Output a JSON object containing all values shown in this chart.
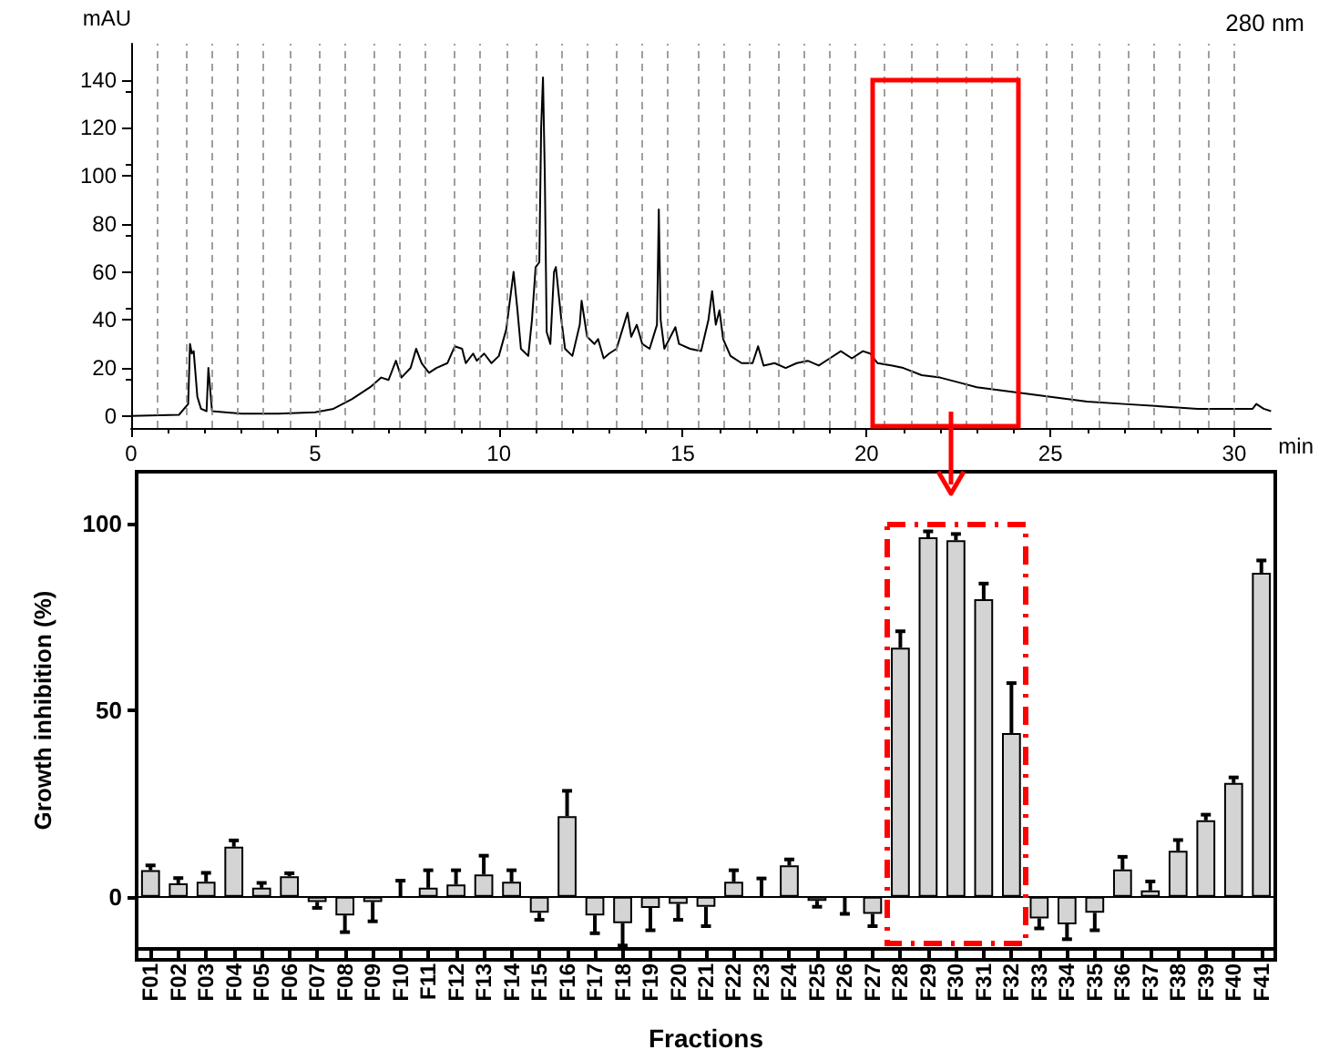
{
  "chart_data": [
    {
      "type": "line",
      "xlabel": "min",
      "ylabel": "mAU",
      "annotations": [
        "280 nm"
      ],
      "color": "#000000",
      "x": [
        0,
        1.3,
        1.55,
        1.6,
        1.65,
        1.7,
        1.8,
        1.9,
        2.05,
        2.1,
        2.2,
        3,
        4,
        5,
        5.5,
        6,
        6.5,
        6.8,
        7.0,
        7.2,
        7.35,
        7.6,
        7.75,
        7.9,
        8.1,
        8.3,
        8.6,
        8.8,
        9.0,
        9.1,
        9.3,
        9.4,
        9.6,
        9.8,
        10.0,
        10.2,
        10.4,
        10.5,
        10.6,
        10.8,
        10.9,
        11.0,
        11.1,
        11.15,
        11.2,
        11.25,
        11.3,
        11.4,
        11.5,
        11.55,
        11.7,
        11.8,
        12.0,
        12.2,
        12.25,
        12.4,
        12.6,
        12.7,
        12.85,
        13.0,
        13.2,
        13.4,
        13.5,
        13.6,
        13.75,
        13.9,
        14.1,
        14.3,
        14.35,
        14.4,
        14.5,
        14.8,
        14.9,
        15.2,
        15.5,
        15.7,
        15.8,
        15.9,
        16.0,
        16.1,
        16.3,
        16.6,
        16.9,
        17.05,
        17.2,
        17.5,
        17.8,
        18.1,
        18.4,
        18.7,
        19.0,
        19.3,
        19.6,
        19.9,
        20.1,
        20.3,
        20.7,
        21.0,
        21.5,
        22.0,
        22.5,
        23,
        24,
        25,
        26,
        27,
        28,
        29,
        30,
        30.5,
        30.6,
        30.8,
        31
      ],
      "values": [
        0,
        0.5,
        5,
        30,
        26,
        27,
        8,
        3,
        2,
        20,
        2,
        1,
        1,
        1.5,
        3,
        7,
        12,
        16,
        15,
        23,
        16,
        20,
        28,
        22,
        18,
        20,
        22,
        29,
        28,
        22,
        26,
        23,
        26,
        22,
        25,
        36,
        60,
        45,
        28,
        25,
        40,
        62,
        64,
        120,
        141,
        100,
        35,
        30,
        60,
        62,
        40,
        28,
        25,
        38,
        48,
        33,
        30,
        32,
        24,
        26,
        28,
        38,
        43,
        33,
        38,
        30,
        28,
        38,
        86,
        40,
        28,
        37,
        30,
        28,
        27,
        40,
        52,
        38,
        44,
        32,
        25,
        22,
        22,
        29,
        21,
        22,
        20,
        22,
        23,
        21,
        24,
        27,
        24,
        27,
        26,
        22,
        21,
        20,
        17,
        16,
        14,
        12,
        10,
        8,
        6,
        5,
        4,
        3,
        3,
        3,
        5,
        3,
        2
      ],
      "xlim": [
        0,
        31
      ],
      "xticks": [
        0,
        5,
        10,
        15,
        20,
        25,
        30
      ],
      "ylim": [
        -5,
        155
      ],
      "yticks": [
        0,
        20,
        40,
        60,
        80,
        100,
        120,
        140
      ],
      "ref_lines": [
        {
          "axis": "x",
          "value": 0.7,
          "label": null,
          "color": "#888888",
          "line_style": "dashed"
        },
        {
          "axis": "x",
          "value": 1.5,
          "label": null,
          "color": "#888888",
          "line_style": "dashed"
        },
        {
          "axis": "x",
          "value": 2.2,
          "label": null,
          "color": "#888888",
          "line_style": "dashed"
        },
        {
          "axis": "x",
          "value": 2.9,
          "label": null,
          "color": "#888888",
          "line_style": "dashed"
        },
        {
          "axis": "x",
          "value": 3.6,
          "label": null,
          "color": "#888888",
          "line_style": "dashed"
        },
        {
          "axis": "x",
          "value": 4.3,
          "label": null,
          "color": "#888888",
          "line_style": "dashed"
        },
        {
          "axis": "x",
          "value": 5.1,
          "label": null,
          "color": "#888888",
          "line_style": "dashed"
        },
        {
          "axis": "x",
          "value": 5.8,
          "label": null,
          "color": "#888888",
          "line_style": "dashed"
        },
        {
          "axis": "x",
          "value": 6.6,
          "label": null,
          "color": "#888888",
          "line_style": "dashed"
        },
        {
          "axis": "x",
          "value": 7.3,
          "label": null,
          "color": "#888888",
          "line_style": "dashed"
        },
        {
          "axis": "x",
          "value": 8.0,
          "label": null,
          "color": "#888888",
          "line_style": "dashed"
        },
        {
          "axis": "x",
          "value": 8.8,
          "label": null,
          "color": "#888888",
          "line_style": "dashed"
        },
        {
          "axis": "x",
          "value": 9.5,
          "label": null,
          "color": "#888888",
          "line_style": "dashed"
        },
        {
          "axis": "x",
          "value": 10.2,
          "label": null,
          "color": "#888888",
          "line_style": "dashed"
        },
        {
          "axis": "x",
          "value": 11.0,
          "label": null,
          "color": "#888888",
          "line_style": "dashed"
        },
        {
          "axis": "x",
          "value": 11.7,
          "label": null,
          "color": "#888888",
          "line_style": "dashed"
        },
        {
          "axis": "x",
          "value": 12.4,
          "label": null,
          "color": "#888888",
          "line_style": "dashed"
        },
        {
          "axis": "x",
          "value": 13.2,
          "label": null,
          "color": "#888888",
          "line_style": "dashed"
        },
        {
          "axis": "x",
          "value": 13.9,
          "label": null,
          "color": "#888888",
          "line_style": "dashed"
        },
        {
          "axis": "x",
          "value": 14.6,
          "label": null,
          "color": "#888888",
          "line_style": "dashed"
        },
        {
          "axis": "x",
          "value": 15.4,
          "label": null,
          "color": "#888888",
          "line_style": "dashed"
        },
        {
          "axis": "x",
          "value": 16.1,
          "label": null,
          "color": "#888888",
          "line_style": "dashed"
        },
        {
          "axis": "x",
          "value": 16.8,
          "label": null,
          "color": "#888888",
          "line_style": "dashed"
        },
        {
          "axis": "x",
          "value": 17.6,
          "label": null,
          "color": "#888888",
          "line_style": "dashed"
        },
        {
          "axis": "x",
          "value": 18.3,
          "label": null,
          "color": "#888888",
          "line_style": "dashed"
        },
        {
          "axis": "x",
          "value": 19.0,
          "label": null,
          "color": "#888888",
          "line_style": "dashed"
        },
        {
          "axis": "x",
          "value": 19.7,
          "label": null,
          "color": "#888888",
          "line_style": "dashed"
        },
        {
          "axis": "x",
          "value": 20.5,
          "label": null,
          "color": "#888888",
          "line_style": "dashed"
        },
        {
          "axis": "x",
          "value": 21.2,
          "label": null,
          "color": "#888888",
          "line_style": "dashed"
        },
        {
          "axis": "x",
          "value": 21.9,
          "label": null,
          "color": "#888888",
          "line_style": "dashed"
        },
        {
          "axis": "x",
          "value": 22.7,
          "label": null,
          "color": "#888888",
          "line_style": "dashed"
        },
        {
          "axis": "x",
          "value": 23.4,
          "label": null,
          "color": "#888888",
          "line_style": "dashed"
        },
        {
          "axis": "x",
          "value": 24.1,
          "label": null,
          "color": "#888888",
          "line_style": "dashed"
        },
        {
          "axis": "x",
          "value": 24.9,
          "label": null,
          "color": "#888888",
          "line_style": "dashed"
        },
        {
          "axis": "x",
          "value": 25.6,
          "label": null,
          "color": "#888888",
          "line_style": "dashed"
        },
        {
          "axis": "x",
          "value": 26.3,
          "label": null,
          "color": "#888888",
          "line_style": "dashed"
        },
        {
          "axis": "x",
          "value": 27.1,
          "label": null,
          "color": "#888888",
          "line_style": "dashed"
        },
        {
          "axis": "x",
          "value": 27.8,
          "label": null,
          "color": "#888888",
          "line_style": "dashed"
        },
        {
          "axis": "x",
          "value": 28.5,
          "label": null,
          "color": "#888888",
          "line_style": "dashed"
        },
        {
          "axis": "x",
          "value": 29.3,
          "label": null,
          "color": "#888888",
          "line_style": "dashed"
        },
        {
          "axis": "x",
          "value": 30.0,
          "label": null,
          "color": "#888888",
          "line_style": "dashed"
        }
      ],
      "grid": false
    },
    {
      "type": "bar",
      "xlabel": "Fractions",
      "ylabel": "Growth inhibition (%)",
      "color": "#d4d4d4",
      "categories": [
        "F01",
        "F02",
        "F03",
        "F04",
        "F05",
        "F06",
        "F07",
        "F08",
        "F09",
        "F10",
        "F11",
        "F12",
        "F13",
        "F14",
        "F15",
        "F16",
        "F17",
        "F18",
        "F19",
        "F20",
        "F21",
        "F22",
        "F23",
        "F24",
        "F25",
        "F26",
        "F27",
        "F28",
        "F29",
        "F30",
        "F31",
        "F32",
        "F33",
        "F34",
        "F35",
        "F36",
        "F37",
        "F38",
        "F39",
        "F40",
        "F41"
      ],
      "values": [
        7.1,
        3.6,
        4.0,
        13.4,
        2.4,
        5.5,
        -1.4,
        -5.0,
        -1.4,
        0,
        2.4,
        3.3,
        6.0,
        4.0,
        -4.3,
        21.6,
        -5.0,
        -7.1,
        -3.0,
        -1.9,
        -2.7,
        4.0,
        0,
        8.4,
        -1.1,
        0,
        -4.6,
        66.8,
        96.4,
        95.6,
        79.8,
        43.9,
        -5.8,
        -7.4,
        -4.3,
        7.3,
        1.7,
        12.3,
        20.5,
        30.5,
        86.9
      ],
      "errors": [
        [
          7.1,
          8.4
        ],
        [
          3.6,
          5.0
        ],
        [
          4.0,
          6.4
        ],
        [
          13.4,
          15.1
        ],
        [
          2.4,
          3.7
        ],
        [
          5.5,
          6.3
        ],
        [
          -3.0,
          -1.4
        ],
        [
          -9.5,
          -5.0
        ],
        [
          -6.6,
          -1.4
        ],
        [
          0,
          4.3
        ],
        [
          2.4,
          7.1
        ],
        [
          3.3,
          7.1
        ],
        [
          6.0,
          11.0
        ],
        [
          4.0,
          7.1
        ],
        [
          -6.2,
          -4.3
        ],
        [
          21.6,
          28.4
        ],
        [
          -9.8,
          -5.0
        ],
        [
          -13.1,
          -7.1
        ],
        [
          -9.0,
          -3.0
        ],
        [
          -6.2,
          -1.9
        ],
        [
          -7.9,
          -2.7
        ],
        [
          4.0,
          7.1
        ],
        [
          0,
          4.9
        ],
        [
          8.4,
          10.0
        ],
        [
          -2.7,
          -1.1
        ],
        [
          -4.6,
          0
        ],
        [
          -7.9,
          -4.6
        ],
        [
          66.8,
          71.2
        ],
        [
          96.4,
          98.0
        ],
        [
          95.6,
          97.3
        ],
        [
          79.8,
          84.0
        ],
        [
          43.9,
          57.3
        ],
        [
          -8.5,
          -5.8
        ],
        [
          -11.4,
          -7.4
        ],
        [
          -9.0,
          -4.3
        ],
        [
          7.3,
          10.7
        ],
        [
          1.7,
          4.1
        ],
        [
          12.3,
          15.2
        ],
        [
          20.5,
          22.0
        ],
        [
          30.5,
          32.0
        ],
        [
          86.9,
          90.2
        ]
      ],
      "ylim": [
        -14,
        114
      ],
      "yticks": [
        0,
        50,
        100
      ],
      "ref_lines": [
        {
          "axis": "y",
          "value": 0,
          "label": null,
          "color": "#000000",
          "line_style": "solid"
        }
      ]
    }
  ]
}
